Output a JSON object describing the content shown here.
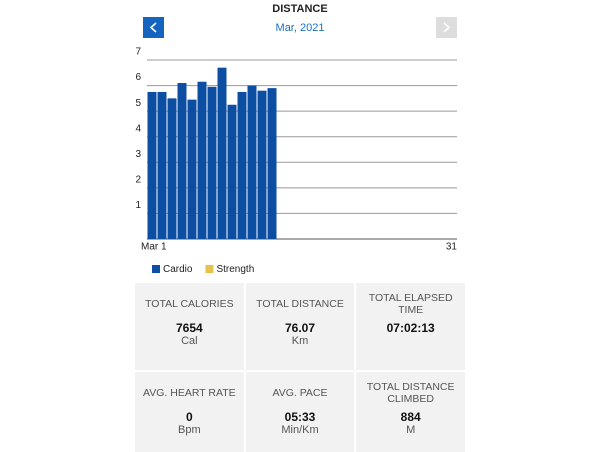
{
  "chart_data": {
    "type": "bar",
    "title": "DISTANCE",
    "subtitle": "Mar, 2021",
    "categories": [
      "Mar 1",
      null,
      null,
      null,
      null,
      null,
      null,
      null,
      null,
      null,
      null,
      null,
      null,
      null,
      null,
      null,
      null,
      null,
      null,
      null,
      null,
      null,
      null,
      null,
      null,
      null,
      null,
      null,
      null,
      null,
      "31"
    ],
    "series": [
      {
        "name": "Cardio",
        "color": "#0b4ea2",
        "values": [
          5.75,
          5.75,
          5.5,
          6.1,
          5.45,
          6.15,
          5.95,
          6.7,
          5.25,
          5.75,
          6,
          5.8,
          5.9,
          null,
          null,
          null,
          null,
          null,
          null,
          null,
          null,
          null,
          null,
          null,
          null,
          null,
          null,
          null,
          null,
          null,
          null
        ]
      },
      {
        "name": "Strength",
        "color": "#e8c24a",
        "values": [
          null,
          null,
          null,
          null,
          null,
          null,
          null,
          null,
          null,
          null,
          null,
          null,
          null,
          null,
          null,
          null,
          null,
          null,
          null,
          null,
          null,
          null,
          null,
          null,
          null,
          null,
          null,
          null,
          null,
          null,
          null
        ]
      }
    ],
    "ylim": [
      0,
      7
    ],
    "yticks": [
      1,
      2,
      3,
      4,
      5,
      6,
      7
    ],
    "grid": true
  },
  "stats": [
    {
      "label": "TOTAL CALORIES",
      "value": "7654",
      "unit": "Cal"
    },
    {
      "label": "TOTAL DISTANCE",
      "value": "76.07",
      "unit": "Km"
    },
    {
      "label": "TOTAL ELAPSED TIME",
      "value": "07:02:13",
      "unit": ""
    },
    {
      "label": "AVG. HEART RATE",
      "value": "0",
      "unit": "Bpm"
    },
    {
      "label": "AVG. PACE",
      "value": "05:33",
      "unit": "Min/Km"
    },
    {
      "label": "TOTAL DISTANCE CLIMBED",
      "value": "884",
      "unit": "M"
    }
  ]
}
